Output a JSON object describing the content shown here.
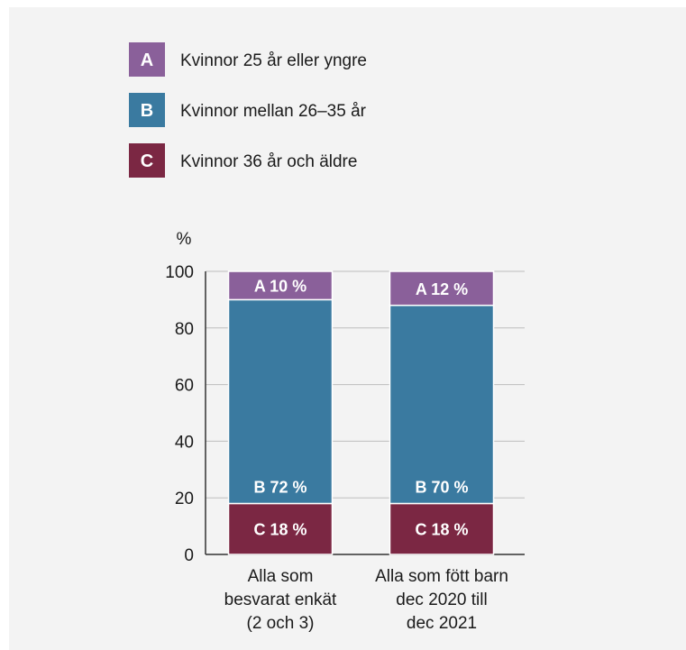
{
  "chart_data": {
    "type": "bar",
    "stacked": true,
    "ylabel": "%",
    "ylim": [
      0,
      100
    ],
    "yticks": [
      "0",
      "20",
      "40",
      "60",
      "80",
      "100"
    ],
    "grid": true,
    "legend_placement": "top-left",
    "categories": [
      [
        "Alla som",
        "besvarat enkät",
        "(2 och 3)"
      ],
      [
        "Alla som fött barn",
        "dec 2020 till",
        "dec 2021"
      ]
    ],
    "series": [
      {
        "key": "C",
        "name": "Kvinnor 36 år och äldre",
        "color": "#7b2743",
        "values": [
          18,
          18
        ],
        "labels": [
          "C 18 %",
          "C 18 %"
        ]
      },
      {
        "key": "B",
        "name": "Kvinnor mellan 26–35 år",
        "color": "#3a7aa0",
        "values": [
          72,
          70
        ],
        "labels": [
          "B 72 %",
          "B 70 %"
        ]
      },
      {
        "key": "A",
        "name": "Kvinnor 25 år eller yngre",
        "color": "#8a609a",
        "values": [
          10,
          12
        ],
        "labels": [
          "A 10 %",
          "A 12 %"
        ]
      }
    ],
    "legend_order": [
      "A",
      "B",
      "C"
    ]
  }
}
